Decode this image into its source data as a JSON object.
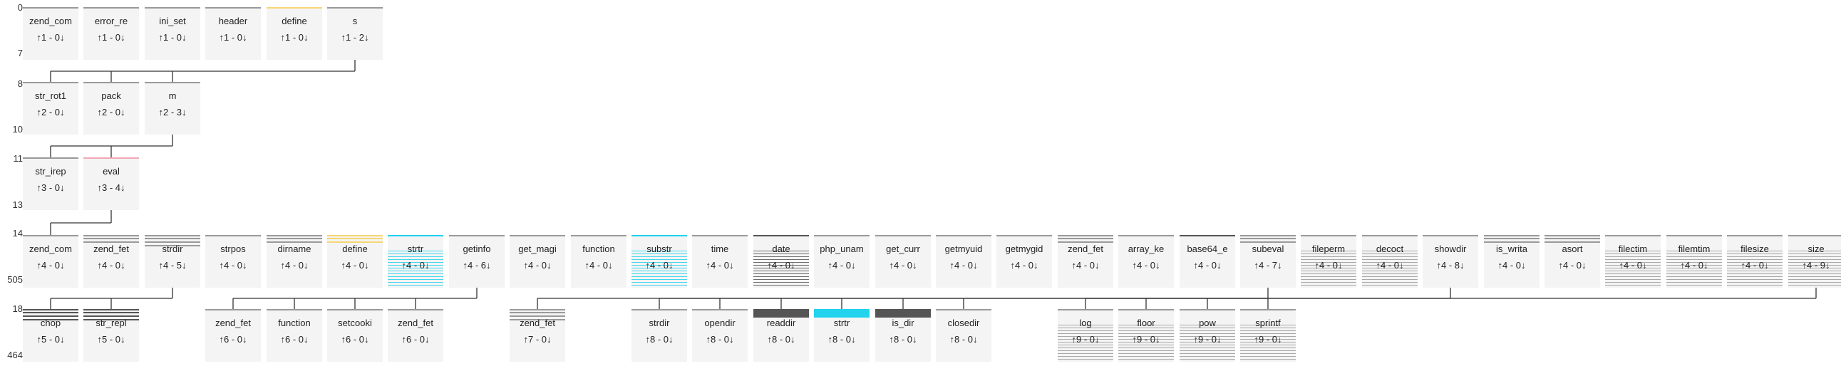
{
  "colors": {
    "grey": "#9a9a9a",
    "yellow": "#f7d774",
    "pink": "#f2a6b5",
    "cyan": "#22d3ee",
    "dark": "#555555",
    "tile": "#f4f4f4"
  },
  "levels": [
    {
      "id": "l0",
      "label": "0"
    },
    {
      "id": "l7",
      "label": "7"
    },
    {
      "id": "l8",
      "label": "8"
    },
    {
      "id": "l10",
      "label": "10"
    },
    {
      "id": "l11",
      "label": "11"
    },
    {
      "id": "l13",
      "label": "13"
    },
    {
      "id": "l14",
      "label": "14"
    },
    {
      "id": "l505",
      "label": "505"
    },
    {
      "id": "l18",
      "label": "18"
    },
    {
      "id": "l464",
      "label": "464"
    }
  ],
  "nodes": [
    {
      "id": "r0c0",
      "label": "zend_com",
      "count": "↑1 - 0↓",
      "accent": "grey"
    },
    {
      "id": "r0c1",
      "label": "error_re",
      "count": "↑1 - 0↓",
      "accent": "grey"
    },
    {
      "id": "r0c2",
      "label": "ini_set",
      "count": "↑1 - 0↓",
      "accent": "grey"
    },
    {
      "id": "r0c3",
      "label": "header",
      "count": "↑1 - 0↓",
      "accent": "grey"
    },
    {
      "id": "r0c4",
      "label": "define",
      "count": "↑1 - 0↓",
      "accent": "yellow"
    },
    {
      "id": "r0c5",
      "label": "s",
      "count": "↑1 - 2↓",
      "accent": "grey"
    },
    {
      "id": "r1c0",
      "label": "str_rot1",
      "count": "↑2 - 0↓",
      "accent": "grey"
    },
    {
      "id": "r1c1",
      "label": "pack",
      "count": "↑2 - 0↓",
      "accent": "grey"
    },
    {
      "id": "r1c2",
      "label": "m",
      "count": "↑2 - 3↓",
      "accent": "grey"
    },
    {
      "id": "r2c0",
      "label": "str_irep",
      "count": "↑3 - 0↓",
      "accent": "grey"
    },
    {
      "id": "r2c1",
      "label": "eval",
      "count": "↑3 - 4↓",
      "accent": "pink"
    },
    {
      "id": "r3c0",
      "label": "zend_com",
      "count": "↑4 - 0↓",
      "accent": "grey"
    },
    {
      "id": "r3c1",
      "label": "zend_fet",
      "count": "↑4 - 0↓",
      "accent": "grey",
      "stack": 2
    },
    {
      "id": "r3c2",
      "label": "strdir",
      "count": "↑4 - 5↓",
      "accent": "grey",
      "stack": 3
    },
    {
      "id": "r3c3",
      "label": "strpos",
      "count": "↑4 - 0↓",
      "accent": "grey"
    },
    {
      "id": "r3c4",
      "label": "dirname",
      "count": "↑4 - 0↓",
      "accent": "grey",
      "stack": 2
    },
    {
      "id": "r3c5",
      "label": "define",
      "count": "↑4 - 0↓",
      "accent": "yellow",
      "stack": 2
    },
    {
      "id": "r3c6",
      "label": "strtr",
      "count": "↑4 - 0↓",
      "accent": "cyan",
      "stack": 14
    },
    {
      "id": "r3c7",
      "label": "getinfo",
      "count": "↑4 - 6↓",
      "accent": "grey"
    },
    {
      "id": "r3c8",
      "label": "get_magi",
      "count": "↑4 - 0↓",
      "accent": "grey"
    },
    {
      "id": "r3c9",
      "label": "function",
      "count": "↑4 - 0↓",
      "accent": "grey"
    },
    {
      "id": "r3c10",
      "label": "substr",
      "count": "↑4 - 0↓",
      "accent": "cyan",
      "stack": 14
    },
    {
      "id": "r3c11",
      "label": "time",
      "count": "↑4 - 0↓",
      "accent": "grey"
    },
    {
      "id": "r3c12",
      "label": "date",
      "count": "↑4 - 0↓",
      "accent": "dark",
      "stack": 12
    },
    {
      "id": "r3c13",
      "label": "php_unam",
      "count": "↑4 - 0↓",
      "accent": "grey"
    },
    {
      "id": "r3c14",
      "label": "get_curr",
      "count": "↑4 - 0↓",
      "accent": "grey"
    },
    {
      "id": "r3c15",
      "label": "getmyuid",
      "count": "↑4 - 0↓",
      "accent": "grey"
    },
    {
      "id": "r3c16",
      "label": "getmygid",
      "count": "↑4 - 0↓",
      "accent": "grey"
    },
    {
      "id": "r3c17",
      "label": "zend_fet",
      "count": "↑4 - 0↓",
      "accent": "grey",
      "stack": 2
    },
    {
      "id": "r3c18",
      "label": "array_ke",
      "count": "↑4 - 0↓",
      "accent": "grey"
    },
    {
      "id": "r3c19",
      "label": "base64_e",
      "count": "↑4 - 0↓",
      "accent": "dark"
    },
    {
      "id": "r3c20",
      "label": "subeval",
      "count": "↑4 - 7↓",
      "accent": "grey",
      "stack": 2
    },
    {
      "id": "r3c21",
      "label": "fileperm",
      "count": "↑4 - 0↓",
      "accent": "grey",
      "stack": 10
    },
    {
      "id": "r3c22",
      "label": "decoct",
      "count": "↑4 - 0↓",
      "accent": "grey",
      "stack": 10
    },
    {
      "id": "r3c23",
      "label": "showdir",
      "count": "↑4 - 8↓",
      "accent": "grey"
    },
    {
      "id": "r3c24",
      "label": "is_writa",
      "count": "↑4 - 0↓",
      "accent": "grey",
      "stack": 2
    },
    {
      "id": "r3c25",
      "label": "asort",
      "count": "↑4 - 0↓",
      "accent": "grey",
      "stack": 2
    },
    {
      "id": "r3c26",
      "label": "filectim",
      "count": "↑4 - 0↓",
      "accent": "grey",
      "stack": 10
    },
    {
      "id": "r3c27",
      "label": "filemtim",
      "count": "↑4 - 0↓",
      "accent": "grey",
      "stack": 10
    },
    {
      "id": "r3c28",
      "label": "filesize",
      "count": "↑4 - 0↓",
      "accent": "grey",
      "stack": 10
    },
    {
      "id": "r3c29",
      "label": "size",
      "count": "↑4 - 9↓",
      "accent": "grey",
      "stack": 10
    },
    {
      "id": "r4c0",
      "label": "chop",
      "count": "↑5 - 0↓",
      "accent": "dark",
      "stack": 3
    },
    {
      "id": "r4c1",
      "label": "str_repl",
      "count": "↑5 - 0↓",
      "accent": "dark",
      "stack": 3
    },
    {
      "id": "r4c3",
      "label": "zend_fet",
      "count": "↑6 - 0↓",
      "accent": "grey"
    },
    {
      "id": "r4c4",
      "label": "function",
      "count": "↑6 - 0↓",
      "accent": "grey"
    },
    {
      "id": "r4c5",
      "label": "setcooki",
      "count": "↑6 - 0↓",
      "accent": "grey"
    },
    {
      "id": "r4c6",
      "label": "zend_fet",
      "count": "↑6 - 0↓",
      "accent": "grey"
    },
    {
      "id": "r4c8",
      "label": "zend_fet",
      "count": "↑7 - 0↓",
      "accent": "grey",
      "stack": 3
    },
    {
      "id": "r4c10",
      "label": "strdir",
      "count": "↑8 - 0↓",
      "accent": "grey"
    },
    {
      "id": "r4c11",
      "label": "opendir",
      "count": "↑8 - 0↓",
      "accent": "grey"
    },
    {
      "id": "r4c12",
      "label": "readdir",
      "count": "↑8 - 0↓",
      "accent": "dark",
      "stack": 1,
      "thick": true
    },
    {
      "id": "r4c13",
      "label": "strtr",
      "count": "↑8 - 0↓",
      "accent": "cyan",
      "thick": true
    },
    {
      "id": "r4c14",
      "label": "is_dir",
      "count": "↑8 - 0↓",
      "accent": "dark",
      "stack": 1,
      "thick": true
    },
    {
      "id": "r4c15",
      "label": "closedir",
      "count": "↑8 - 0↓",
      "accent": "grey"
    },
    {
      "id": "r4c17",
      "label": "log",
      "count": "↑9 - 0↓",
      "accent": "grey",
      "stack": 10
    },
    {
      "id": "r4c18",
      "label": "floor",
      "count": "↑9 - 0↓",
      "accent": "grey",
      "stack": 10
    },
    {
      "id": "r4c19",
      "label": "pow",
      "count": "↑9 - 0↓",
      "accent": "grey",
      "stack": 10
    },
    {
      "id": "r4c20",
      "label": "sprintf",
      "count": "↑9 - 0↓",
      "accent": "grey",
      "stack": 10
    }
  ],
  "edges": [
    {
      "from": "r0c5",
      "to": [
        "r1c0",
        "r1c1",
        "r1c2"
      ]
    },
    {
      "from": "r1c2",
      "to": [
        "r2c0",
        "r2c1"
      ]
    },
    {
      "from": "r2c1",
      "to": [
        "r3c0"
      ]
    },
    {
      "from": "r3c2",
      "to": [
        "r4c0",
        "r4c1"
      ]
    },
    {
      "from": "r3c7",
      "to": [
        "r4c3",
        "r4c4",
        "r4c5",
        "r4c6"
      ]
    },
    {
      "from": "r3c20",
      "to": [
        "r4c8"
      ]
    },
    {
      "from": "r3c23",
      "to": [
        "r4c10",
        "r4c11",
        "r4c12",
        "r4c13",
        "r4c14",
        "r4c15"
      ]
    },
    {
      "from": "r3c29",
      "to": [
        "r4c17",
        "r4c18",
        "r4c19",
        "r4c20"
      ]
    }
  ]
}
